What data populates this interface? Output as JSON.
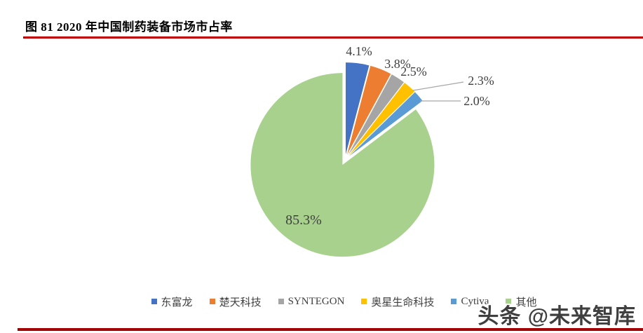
{
  "page": {
    "title": "图 81 2020 年中国制药装备市场市占率",
    "watermark": "头条 @未来智库",
    "accent_top_color": "#C00000",
    "accent_bottom_color": "#A30000",
    "background": "#FFFFFF"
  },
  "chart_data": {
    "type": "pie",
    "title": "2020 年中国制药装备市场市占率",
    "categories": [
      "东富龙",
      "楚天科技",
      "SYNTEGON",
      "奥星生命科技",
      "Cytiva",
      "其他"
    ],
    "values": [
      4.1,
      3.8,
      2.5,
      2.3,
      2.0,
      85.3
    ],
    "labels": [
      "4.1%",
      "3.8%",
      "2.5%",
      "2.3%",
      "2.0%",
      "85.3%"
    ],
    "colors": [
      "#4472C4",
      "#ED7D31",
      "#A5A5A5",
      "#FFC000",
      "#5B9BD5",
      "#A9D18E"
    ],
    "label_color": "#404040",
    "leader_line_color": "#A6A6A6",
    "legend_position": "bottom",
    "start_angle_deg": 0,
    "exploded": true
  }
}
